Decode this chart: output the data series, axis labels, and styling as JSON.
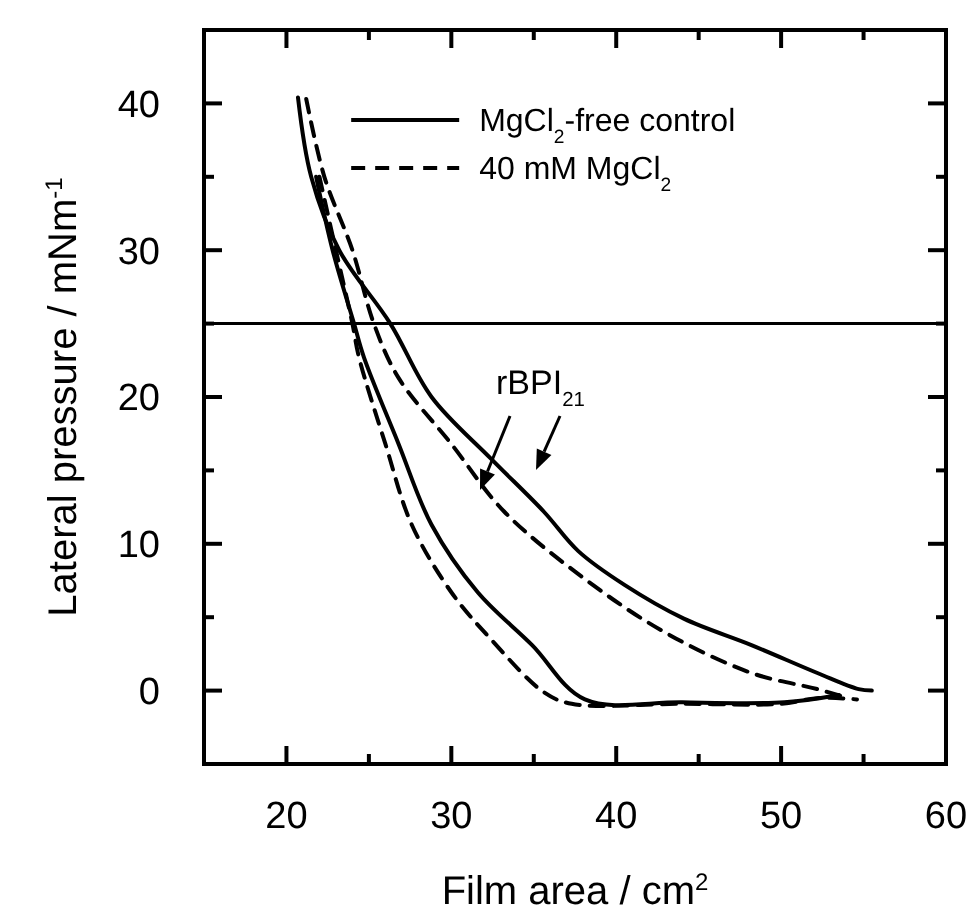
{
  "chart_data": {
    "type": "line",
    "xlabel": "Film area / cm$^{2}$",
    "ylabel": "Lateral pressure / mNm$^{-1}$",
    "xlim": [
      15,
      60
    ],
    "ylim": [
      -5,
      45
    ],
    "xticks": [
      20,
      {
        "value": 25,
        "label": null
      },
      30,
      {
        "value": 35,
        "label": null
      },
      40,
      {
        "value": 45,
        "label": null
      },
      50,
      {
        "value": 55,
        "label": null
      },
      60
    ],
    "yticks": [
      0,
      {
        "value": 5,
        "label": null
      },
      10,
      {
        "value": 15,
        "label": null
      },
      20,
      {
        "value": 25,
        "label": null
      },
      30,
      {
        "value": 35,
        "label": null
      },
      40
    ],
    "grid": false,
    "legend": "top right",
    "marker": "none",
    "series": [
      {
        "name": "MgCl$_{2}$-free control",
        "color": "#000000",
        "line_style": "solid",
        "x": [
          20.7,
          21.5,
          23.2,
          26.3,
          28.8,
          32.4,
          35.6,
          37.7,
          40.5,
          44.1,
          48.2,
          52.2,
          54.7,
          55.5
        ],
        "values": [
          40.4,
          35,
          30,
          25,
          20,
          15.8,
          12.2,
          9.5,
          7.2,
          4.9,
          3.1,
          1.2,
          0.1,
          0
        ]
      },
      {
        "name": "40 mM MgCl$_{2}$",
        "color": "#000000",
        "line_style": "dashed",
        "x": [
          21.2,
          22.3,
          24,
          25.3,
          26.8,
          30,
          33.2,
          38.1,
          42.9,
          48.2,
          52.2,
          54
        ],
        "values": [
          40.3,
          35,
          30,
          25,
          21.3,
          16.8,
          12.2,
          7.6,
          4,
          1.2,
          0.1,
          -0.5
        ]
      },
      {
        "color": "#000000",
        "line_style": "solid",
        "x": [
          21.8,
          22.8,
          24.1,
          24.7,
          26.8,
          28.8,
          31.6,
          34.9,
          38.1,
          44,
          50.2,
          53.5
        ],
        "values": [
          35,
          30,
          25,
          22.7,
          16.8,
          11.3,
          6.7,
          3.1,
          -0.6,
          -0.8,
          -0.8,
          -0.3
        ]
      },
      {
        "color": "#000000",
        "line_style": "dashed",
        "x": [
          22,
          23,
          24,
          24.4,
          26,
          27.6,
          30,
          32.4,
          35.6,
          37.3,
          44,
          50,
          52.3,
          54.6
        ],
        "values": [
          35,
          30,
          25,
          22.7,
          16.8,
          11.3,
          6.7,
          3.5,
          -0.1,
          -0.9,
          -0.9,
          -0.9,
          -0.5,
          -0.6
        ]
      }
    ],
    "ref_lines": [
      {
        "axis": "y",
        "value": 25,
        "color": "#000000"
      }
    ],
    "annotations": [
      "rBPI$_{21}$"
    ]
  }
}
